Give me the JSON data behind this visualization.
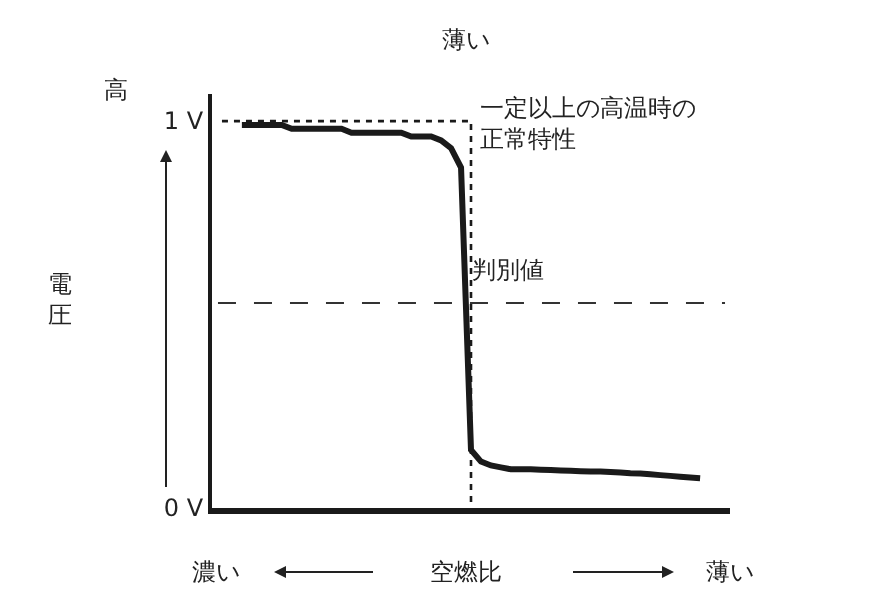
{
  "chart_data": {
    "type": "line",
    "categories": [
      null,
      null,
      null,
      null,
      null,
      null,
      null,
      null,
      null,
      null,
      null,
      null,
      null,
      null,
      null,
      null,
      null,
      null,
      null,
      null,
      null,
      null,
      null,
      null,
      null,
      null,
      null,
      null,
      null,
      null,
      null,
      null,
      null,
      null,
      null,
      null,
      null,
      null,
      null,
      null,
      null,
      null,
      null,
      null,
      null,
      null,
      null,
      null,
      null,
      null,
      null,
      null,
      null
    ],
    "ylabel": "電圧",
    "xlabel": "空燃比",
    "series": [
      {
        "color": "#1a1a1a",
        "line_style": "solid",
        "values": [
          null,
          null,
          null,
          0.99,
          0.99,
          0.99,
          0.99,
          0.99,
          0.98,
          0.98,
          0.98,
          0.98,
          0.98,
          0.98,
          0.97,
          0.97,
          0.97,
          0.97,
          0.97,
          0.97,
          0.96,
          0.96,
          0.96,
          0.95,
          0.93,
          0.88,
          0.15,
          0.12,
          0.11,
          0.105,
          0.1,
          0.1,
          0.1,
          0.099,
          0.098,
          0.097,
          0.096,
          0.095,
          0.094,
          0.094,
          0.093,
          0.092,
          0.09,
          0.089,
          0.087,
          0.085,
          0.083,
          0.081,
          0.079,
          0.077,
          null,
          null,
          null
        ]
      },
      {
        "type": "step",
        "color": "#1a1a1a",
        "line_style": "dotted",
        "values": [
          null,
          1,
          1,
          1,
          1,
          1,
          1,
          1,
          1,
          1,
          1,
          1,
          1,
          1,
          1,
          1,
          1,
          1,
          1,
          1,
          1,
          1,
          1,
          1,
          1,
          1,
          0,
          null,
          null,
          null,
          null,
          null,
          null,
          null,
          null,
          null,
          null,
          null,
          null,
          null,
          null,
          null,
          null,
          null,
          null,
          null,
          null,
          null,
          null,
          null,
          null,
          null,
          null
        ]
      }
    ],
    "ylim": [
      0,
      1.07
    ],
    "yticks": [
      {
        "value": 0,
        "label": "0 V"
      },
      {
        "value": 1,
        "label": "1 V"
      }
    ],
    "ref_lines": [
      {
        "axis": "y",
        "value": 0.53,
        "label": "判別値",
        "color": "#333333",
        "line_style": "dashed"
      }
    ],
    "annotations": [
      "薄い",
      "一定以上の高温時の正常特性",
      "高",
      "濃い",
      "薄い"
    ],
    "tick_labels": "y",
    "legend": false
  }
}
